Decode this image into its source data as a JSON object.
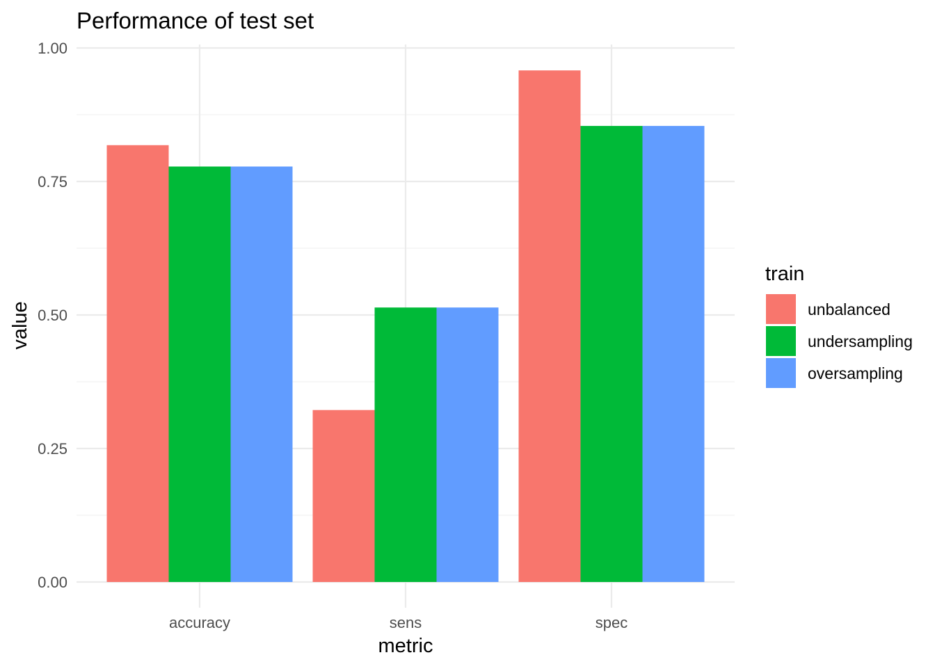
{
  "chart_data": {
    "type": "bar",
    "title": "Performance of test set",
    "xlabel": "metric",
    "ylabel": "value",
    "categories": [
      "accuracy",
      "sens",
      "spec"
    ],
    "series": [
      {
        "name": "unbalanced",
        "color": "#F8766D",
        "values": [
          0.818,
          0.322,
          0.958
        ]
      },
      {
        "name": "undersampling",
        "color": "#00BA38",
        "values": [
          0.778,
          0.514,
          0.854
        ]
      },
      {
        "name": "oversampling",
        "color": "#619CFF",
        "values": [
          0.778,
          0.514,
          0.854
        ]
      }
    ],
    "ylim": [
      0,
      1
    ],
    "yticks": [
      0.0,
      0.25,
      0.5,
      0.75,
      1.0
    ],
    "ytick_labels": [
      "0.00",
      "0.25",
      "0.50",
      "0.75",
      "1.00"
    ],
    "grid": true,
    "legend": {
      "title": "train",
      "placement": "right"
    }
  }
}
